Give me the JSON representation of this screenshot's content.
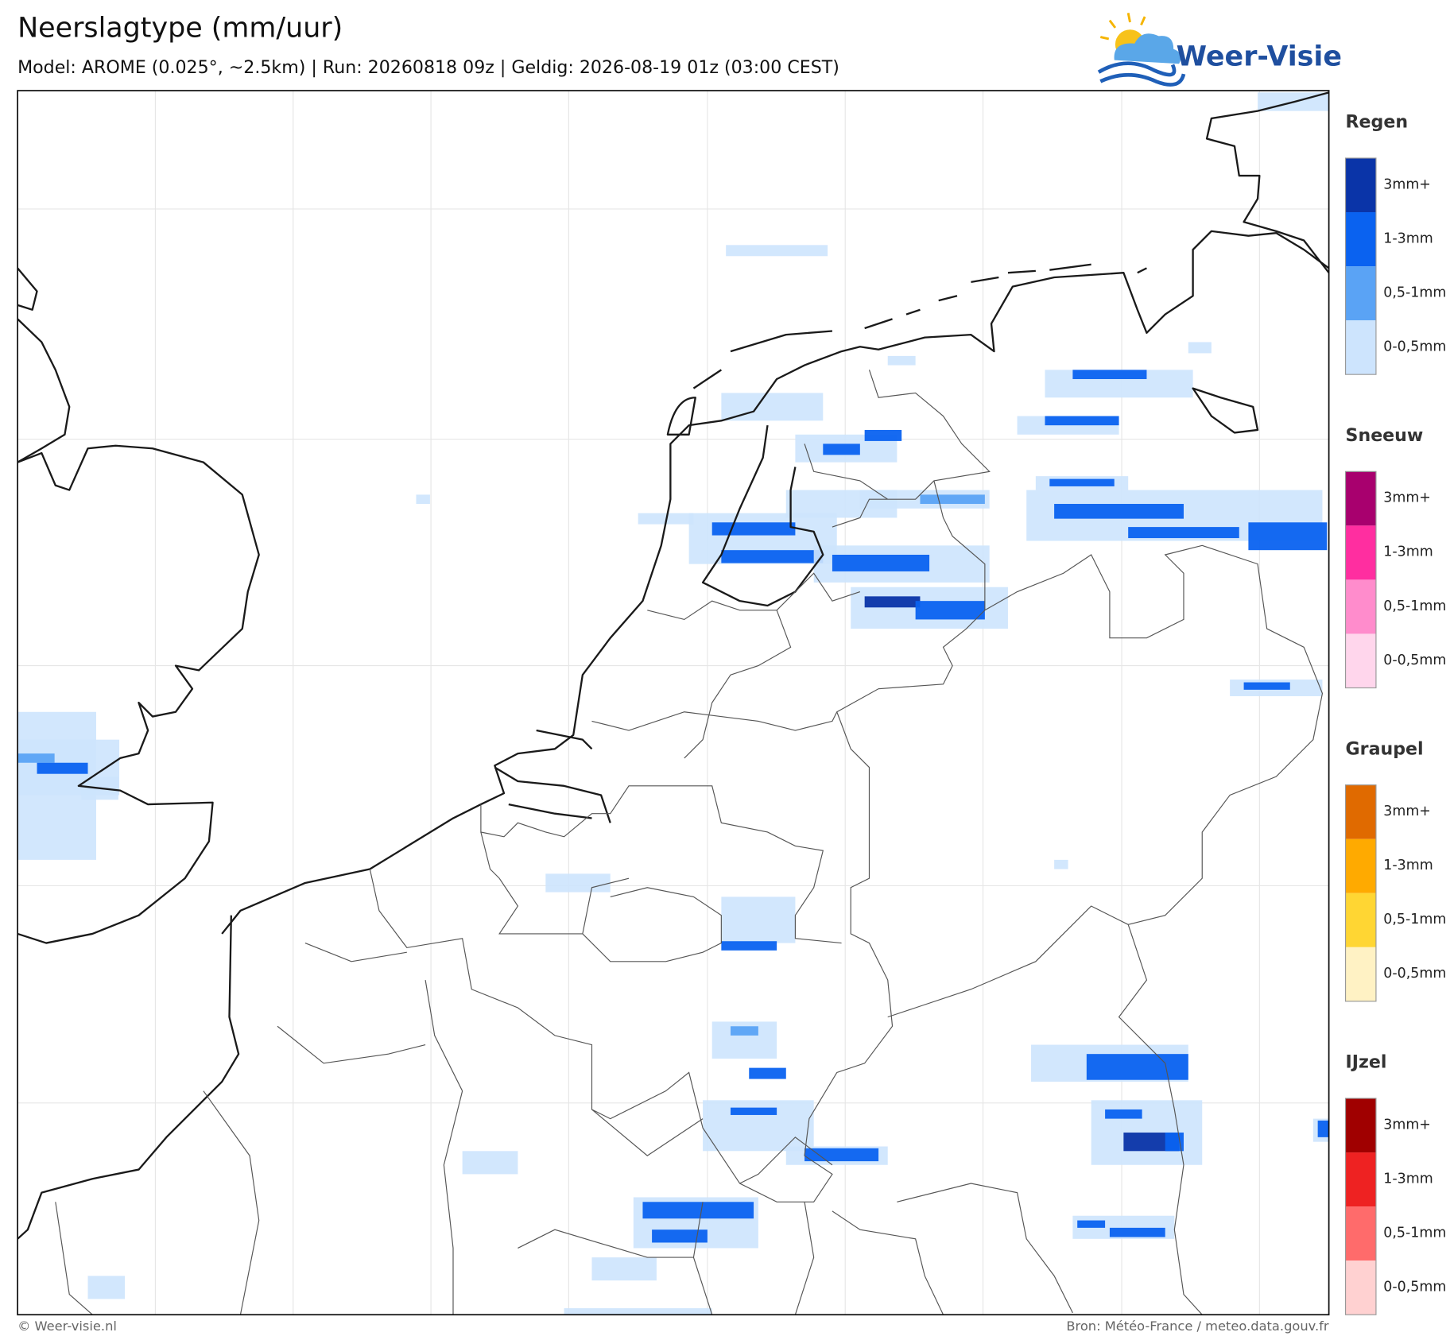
{
  "header": {
    "title": "Neerslagtype (mm/uur)",
    "subtitle": "Model: AROME (0.025°, ~2.5km)  |  Run: 20260818 09z  |  Geldig: 2026-08-19 01z (03:00 CEST)"
  },
  "logo": {
    "text": "Weer-Visie"
  },
  "legend": {
    "groups": [
      {
        "title": "Regen",
        "labels": [
          "3mm+",
          "1-3mm",
          "0,5-1mm",
          "0-0,5mm"
        ]
      },
      {
        "title": "Sneeuw",
        "labels": [
          "3mm+",
          "1-3mm",
          "0,5-1mm",
          "0-0,5mm"
        ]
      },
      {
        "title": "Graupel",
        "labels": [
          "3mm+",
          "1-3mm",
          "0,5-1mm",
          "0-0,5mm"
        ]
      },
      {
        "title": "IJzel",
        "labels": [
          "3mm+",
          "1-3mm",
          "0,5-1mm",
          "0-0,5mm"
        ]
      }
    ]
  },
  "footer": {
    "left": "© Weer-visie.nl",
    "right": "Bron: Météo-France / meteo.data.gouv.fr"
  }
}
